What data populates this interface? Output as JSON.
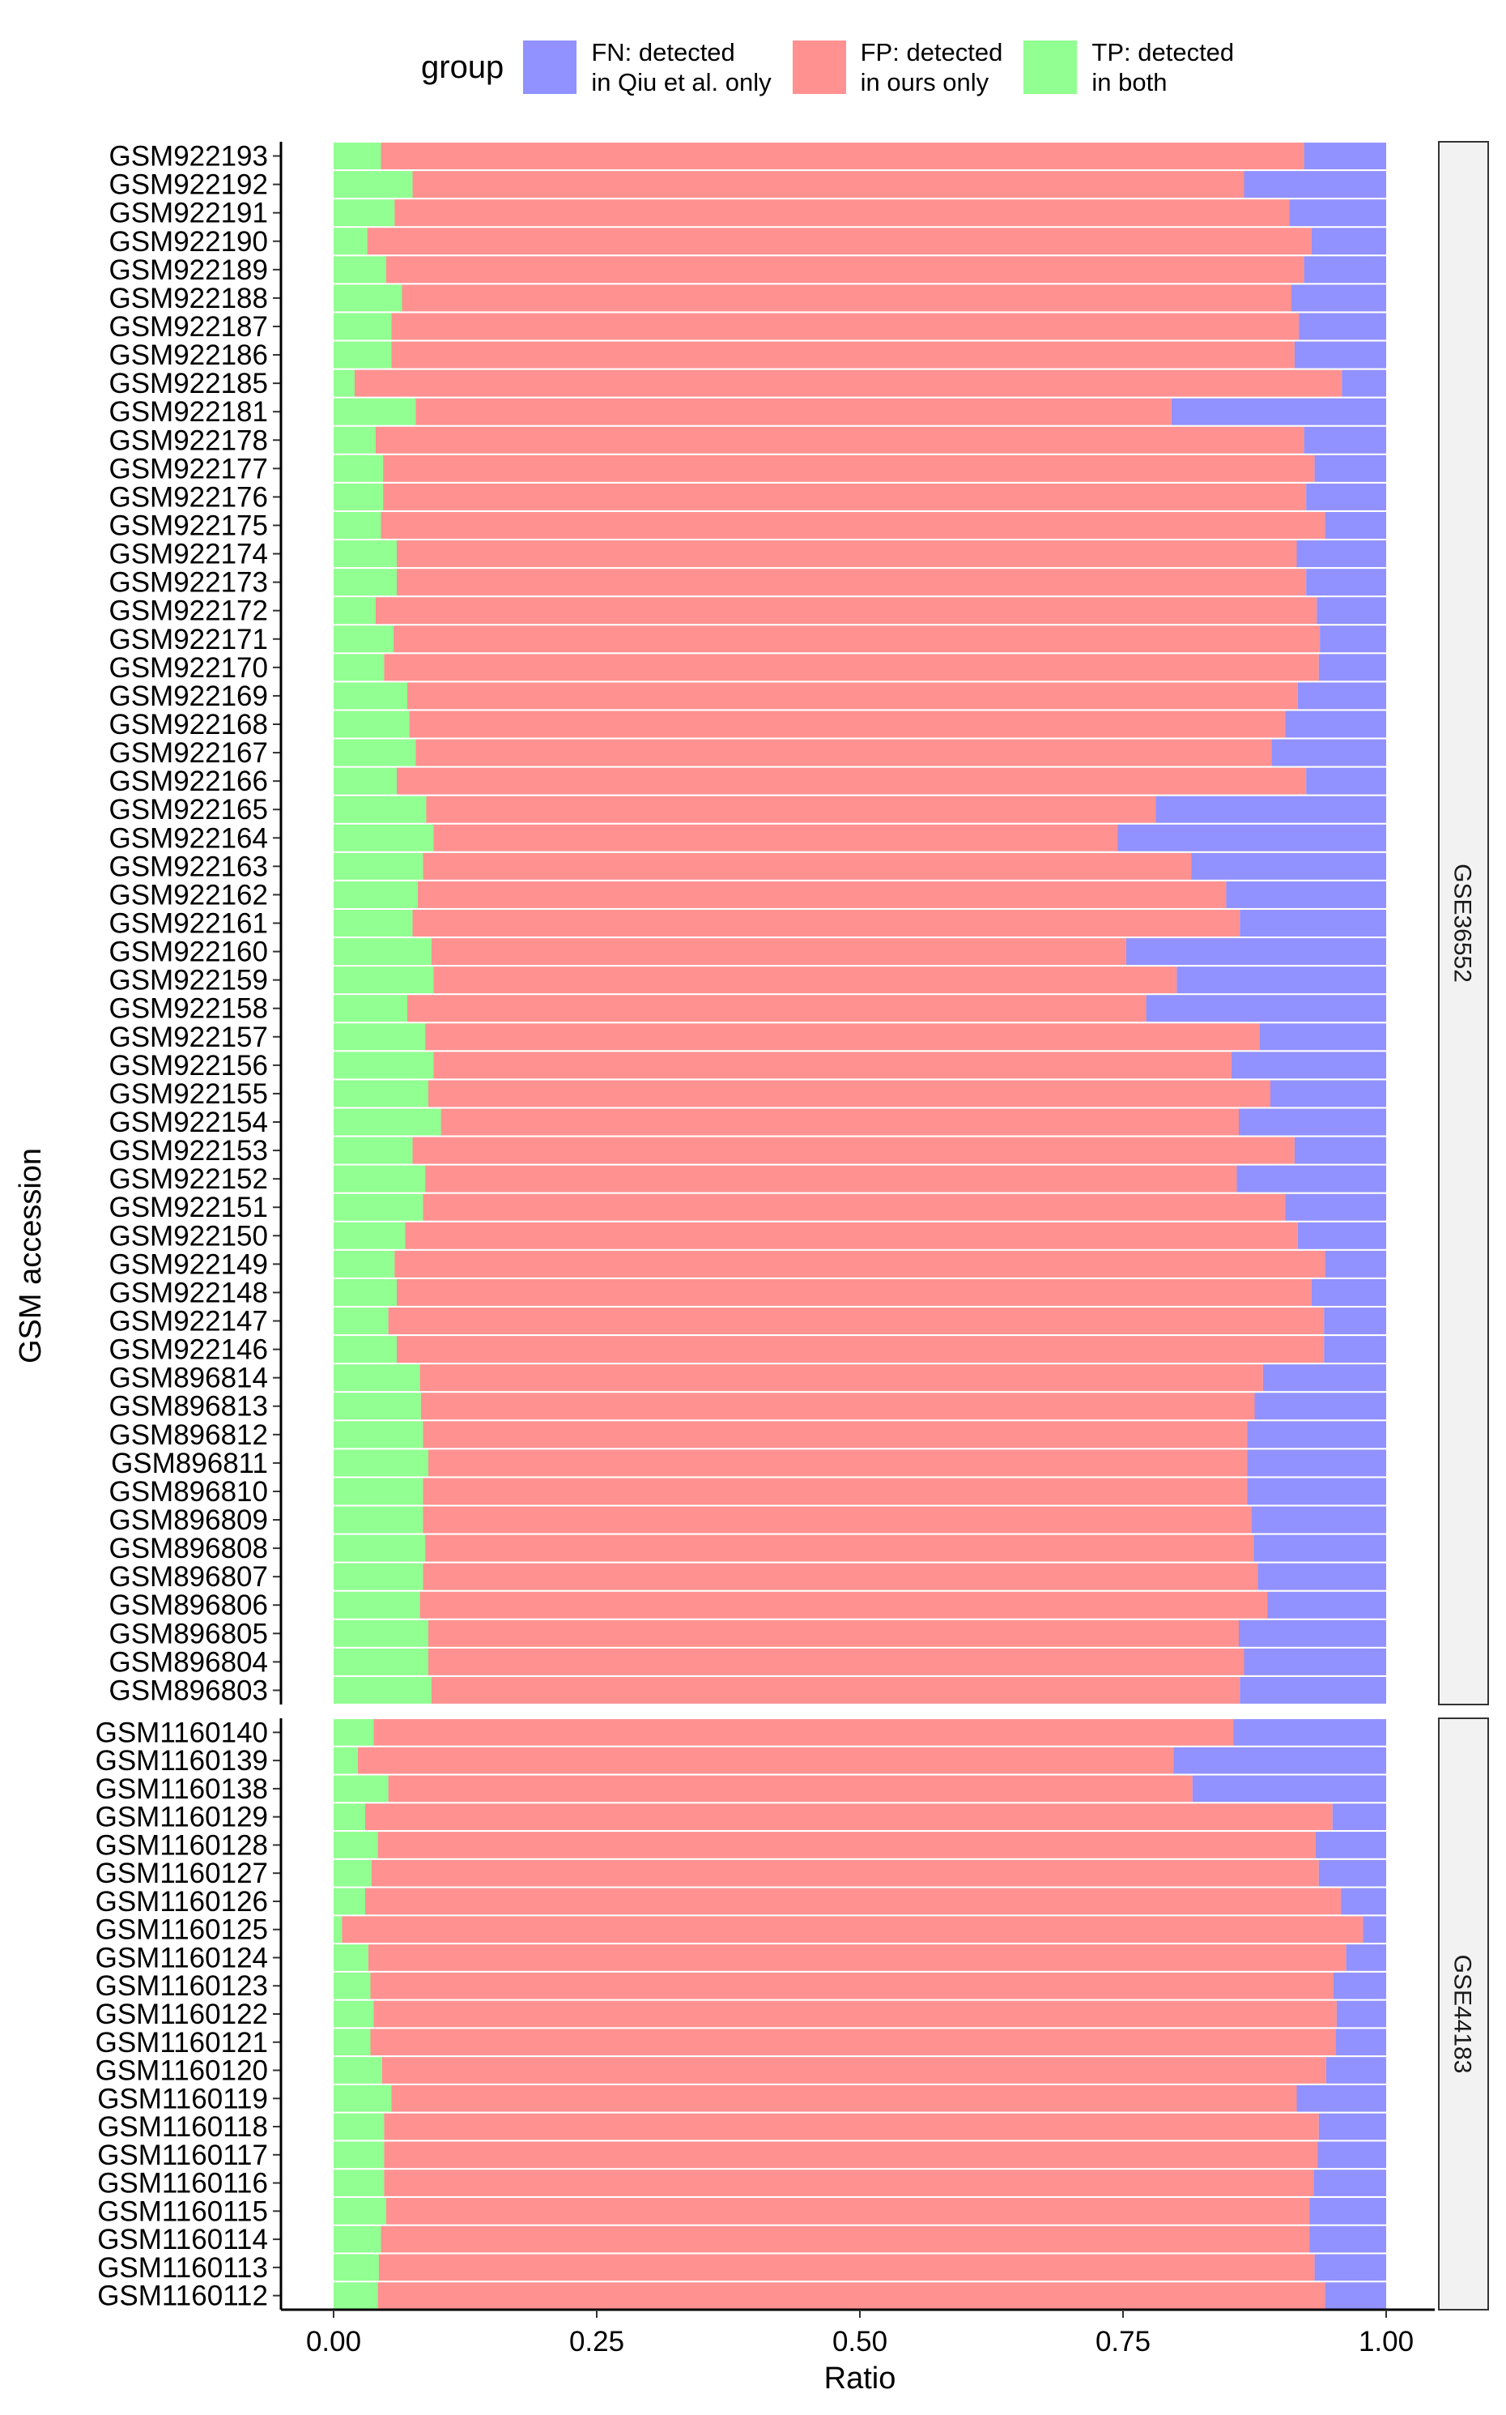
{
  "chart_data": {
    "type": "bar",
    "orientation": "horizontal",
    "stacked": true,
    "xlabel": "Ratio",
    "ylabel": "GSM accession",
    "xlim": [
      0,
      1
    ],
    "x_ticks": [
      "0.00",
      "0.25",
      "0.50",
      "0.75",
      "1.00"
    ],
    "legend": {
      "title": "group",
      "position": "top",
      "entries": [
        {
          "key": "FN",
          "label": "FN: detected\nin Qiu et al. only",
          "color": "#9191FF"
        },
        {
          "key": "FP",
          "label": "FP: detected\nin ours only",
          "color": "#FF9191"
        },
        {
          "key": "TP",
          "label": "TP: detected\nin both",
          "color": "#91FF91"
        }
      ]
    },
    "grid": false,
    "panels": [
      {
        "facet_label": "GSE36552",
        "categories": [
          "GSM922193",
          "GSM922192",
          "GSM922191",
          "GSM922190",
          "GSM922189",
          "GSM922188",
          "GSM922187",
          "GSM922186",
          "GSM922185",
          "GSM922181",
          "GSM922178",
          "GSM922177",
          "GSM922176",
          "GSM922175",
          "GSM922174",
          "GSM922173",
          "GSM922172",
          "GSM922171",
          "GSM922170",
          "GSM922169",
          "GSM922168",
          "GSM922167",
          "GSM922166",
          "GSM922165",
          "GSM922164",
          "GSM922163",
          "GSM922162",
          "GSM922161",
          "GSM922160",
          "GSM922159",
          "GSM922158",
          "GSM922157",
          "GSM922156",
          "GSM922155",
          "GSM922154",
          "GSM922153",
          "GSM922152",
          "GSM922151",
          "GSM922150",
          "GSM922149",
          "GSM922148",
          "GSM922147",
          "GSM922146",
          "GSM896814",
          "GSM896813",
          "GSM896812",
          "GSM896811",
          "GSM896810",
          "GSM896809",
          "GSM896808",
          "GSM896807",
          "GSM896806",
          "GSM896805",
          "GSM896804",
          "GSM896803"
        ],
        "series": [
          {
            "key": "TP",
            "values": [
              0.045,
              0.075,
              0.058,
              0.032,
              0.05,
              0.065,
              0.055,
              0.055,
              0.02,
              0.078,
              0.04,
              0.047,
              0.047,
              0.045,
              0.06,
              0.06,
              0.04,
              0.057,
              0.048,
              0.07,
              0.072,
              0.078,
              0.06,
              0.088,
              0.095,
              0.085,
              0.08,
              0.075,
              0.093,
              0.095,
              0.07,
              0.087,
              0.095,
              0.09,
              0.102,
              0.075,
              0.087,
              0.085,
              0.068,
              0.058,
              0.06,
              0.052,
              0.06,
              0.082,
              0.083,
              0.085,
              0.09,
              0.085,
              0.085,
              0.087,
              0.085,
              0.082,
              0.09,
              0.09,
              0.093
            ]
          },
          {
            "key": "FP",
            "values": [
              0.877,
              0.79,
              0.85,
              0.897,
              0.872,
              0.845,
              0.862,
              0.858,
              0.938,
              0.718,
              0.882,
              0.885,
              0.877,
              0.897,
              0.855,
              0.864,
              0.894,
              0.88,
              0.888,
              0.846,
              0.832,
              0.813,
              0.864,
              0.693,
              0.65,
              0.73,
              0.768,
              0.786,
              0.66,
              0.706,
              0.702,
              0.793,
              0.758,
              0.8,
              0.758,
              0.838,
              0.771,
              0.819,
              0.848,
              0.884,
              0.869,
              0.889,
              0.881,
              0.801,
              0.792,
              0.783,
              0.778,
              0.783,
              0.787,
              0.787,
              0.793,
              0.805,
              0.77,
              0.775,
              0.768
            ]
          },
          {
            "key": "FN",
            "values": [
              0.078,
              0.135,
              0.092,
              0.071,
              0.078,
              0.09,
              0.083,
              0.087,
              0.042,
              0.204,
              0.078,
              0.068,
              0.076,
              0.058,
              0.085,
              0.076,
              0.066,
              0.063,
              0.064,
              0.084,
              0.096,
              0.109,
              0.076,
              0.219,
              0.255,
              0.185,
              0.152,
              0.139,
              0.247,
              0.199,
              0.228,
              0.12,
              0.147,
              0.11,
              0.14,
              0.087,
              0.142,
              0.096,
              0.084,
              0.058,
              0.071,
              0.059,
              0.059,
              0.117,
              0.125,
              0.132,
              0.132,
              0.132,
              0.128,
              0.126,
              0.122,
              0.113,
              0.14,
              0.135,
              0.139
            ]
          }
        ]
      },
      {
        "facet_label": "GSE44183",
        "categories": [
          "GSM1160140",
          "GSM1160139",
          "GSM1160138",
          "GSM1160129",
          "GSM1160128",
          "GSM1160127",
          "GSM1160126",
          "GSM1160125",
          "GSM1160124",
          "GSM1160123",
          "GSM1160122",
          "GSM1160121",
          "GSM1160120",
          "GSM1160119",
          "GSM1160118",
          "GSM1160117",
          "GSM1160116",
          "GSM1160115",
          "GSM1160114",
          "GSM1160113",
          "GSM1160112"
        ],
        "series": [
          {
            "key": "TP",
            "values": [
              0.038,
              0.023,
              0.052,
              0.03,
              0.042,
              0.036,
              0.03,
              0.008,
              0.033,
              0.035,
              0.038,
              0.035,
              0.046,
              0.055,
              0.048,
              0.048,
              0.048,
              0.05,
              0.045,
              0.043,
              0.042
            ]
          },
          {
            "key": "FP",
            "values": [
              0.817,
              0.775,
              0.764,
              0.919,
              0.891,
              0.9,
              0.927,
              0.97,
              0.929,
              0.915,
              0.915,
              0.917,
              0.897,
              0.86,
              0.888,
              0.887,
              0.883,
              0.877,
              0.882,
              0.889,
              0.9
            ]
          },
          {
            "key": "FN",
            "values": [
              0.145,
              0.202,
              0.184,
              0.051,
              0.067,
              0.064,
              0.043,
              0.022,
              0.038,
              0.05,
              0.047,
              0.048,
              0.057,
              0.085,
              0.064,
              0.065,
              0.069,
              0.073,
              0.073,
              0.068,
              0.058
            ]
          }
        ]
      }
    ]
  }
}
